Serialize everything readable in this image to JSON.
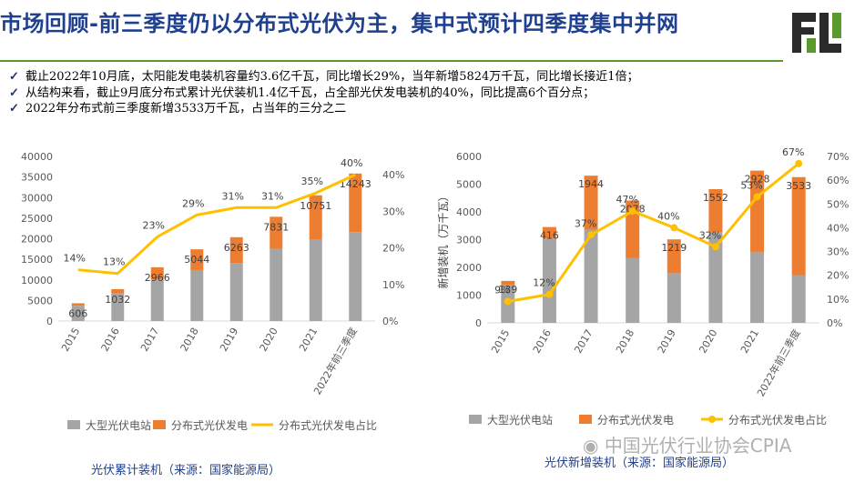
{
  "header": {
    "title": "市场回顾-前三季度仍以分布式光伏为主，集中式预计四季度集中并网",
    "title_color": "#1f3f8f",
    "accent": "#5a9a2c"
  },
  "bullets": [
    "截止2022年10月底，太阳能发电装机容量约3.6亿千瓦，同比增长29%，当年新增5824万千瓦，同比增长接近1倍；",
    "从结构来看，截止9月底分布式累计光伏装机1.4亿千瓦，占全部光伏发电装机的40%，同比提高6个百分点；",
    "2022年分布式前三季度新增3533万千瓦，占当年的三分之二"
  ],
  "bullet_icon": "check-icon",
  "chart_data": [
    {
      "type": "bar",
      "stacked": true,
      "categories": [
        "2015",
        "2016",
        "2017",
        "2018",
        "2019",
        "2020",
        "2021",
        "2022年前三季度"
      ],
      "series": [
        {
          "name": "大型光伏电站",
          "values": [
            3712,
            6710,
            10094,
            12384,
            14105,
            17500,
            19800,
            21600
          ],
          "color": "#a5a5a5"
        },
        {
          "name": "分布式光伏发电",
          "values": [
            606,
            1032,
            2966,
            5044,
            6263,
            7831,
            10751,
            14243
          ],
          "color": "#ed7d31",
          "labels": [
            "606",
            "1032",
            "2966",
            "5044",
            "6263",
            "7831",
            "10751",
            "14243"
          ]
        }
      ],
      "line_series": {
        "name": "分布式光伏发电占比",
        "values": [
          14,
          13,
          23,
          29,
          31,
          31,
          35,
          40
        ],
        "labels": [
          "14%",
          "13%",
          "23%",
          "29%",
          "31%",
          "31%",
          "35%",
          "40%"
        ],
        "color": "#ffc000",
        "markers": false
      },
      "ylim": [
        0,
        40000
      ],
      "yticks": [
        "0",
        "5000",
        "10000",
        "15000",
        "20000",
        "25000",
        "30000",
        "35000",
        "40000"
      ],
      "y2lim": [
        0,
        45
      ],
      "y2ticks": [
        "0%",
        "10%",
        "20%",
        "30%",
        "40%"
      ],
      "y2tick_values": [
        0,
        10,
        20,
        30,
        40
      ],
      "ylabel": "",
      "caption": "光伏累计装机（来源：国家能源局）"
    },
    {
      "type": "bar",
      "stacked": true,
      "categories": [
        "2015",
        "2016",
        "2017",
        "2018",
        "2019",
        "2020",
        "2021",
        "2022年前三季度"
      ],
      "series": [
        {
          "name": "大型光伏电站",
          "values": [
            1374,
            3038,
            3362,
            2330,
            1791,
            3268,
            2560,
            1721
          ],
          "color": "#a5a5a5"
        },
        {
          "name": "分布式光伏发电",
          "values": [
            139,
            416,
            1944,
            2078,
            1219,
            1552,
            2928,
            3533
          ],
          "color": "#ed7d31",
          "labels": [
            "139",
            "416",
            "1944",
            "2078",
            "1219",
            "1552",
            "2928",
            "3533"
          ]
        }
      ],
      "line_series": {
        "name": "分布式光伏发电占比",
        "values": [
          9,
          12,
          37,
          47,
          40,
          32,
          53,
          67
        ],
        "labels": [
          "9%",
          "12%",
          "37%",
          "47%",
          "40%",
          "32%",
          "53%",
          "67%"
        ],
        "color": "#ffc000",
        "markers": true
      },
      "ylim": [
        0,
        6000
      ],
      "yticks": [
        "0",
        "1000",
        "2000",
        "3000",
        "4000",
        "5000",
        "6000"
      ],
      "y2lim": [
        0,
        70
      ],
      "y2ticks": [
        "0%",
        "10%",
        "20%",
        "30%",
        "40%",
        "50%",
        "60%",
        "70%"
      ],
      "y2tick_values": [
        0,
        10,
        20,
        30,
        40,
        50,
        60,
        70
      ],
      "ylabel": "新增装机（万千瓦）",
      "caption": "光伏新增装机（来源：国家能源局）"
    }
  ],
  "watermark": "中国光伏行业协会CPIA",
  "watermark_icon": "wechat-icon"
}
